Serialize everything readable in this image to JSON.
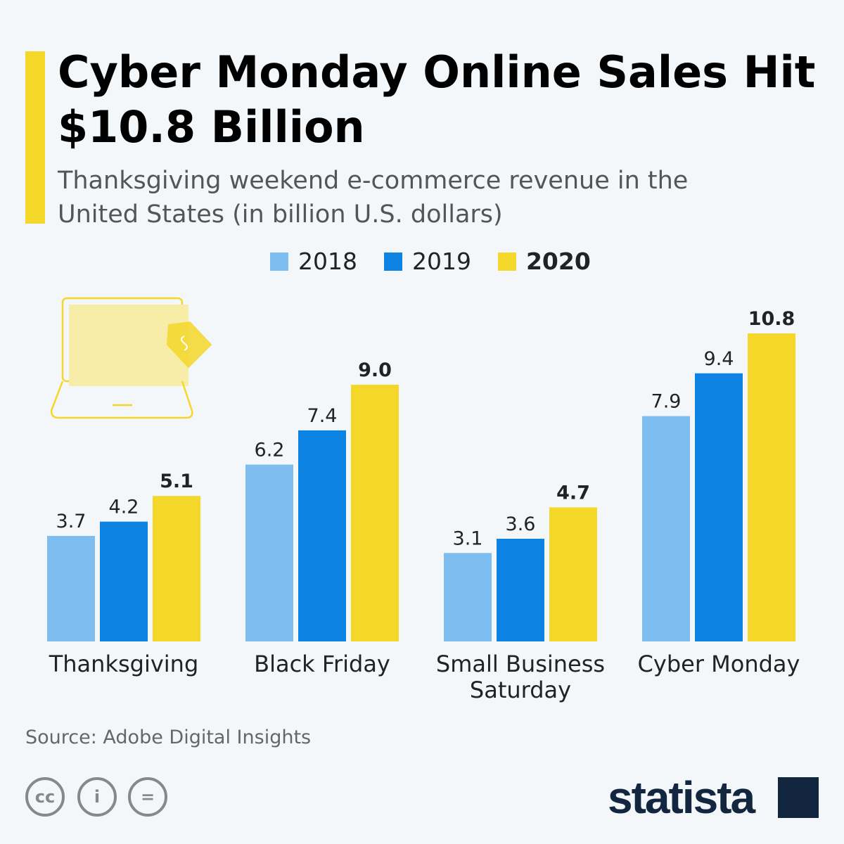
{
  "title": "Cyber Monday Online Sales Hit $10.8 Billion",
  "subtitle": "Thanksgiving weekend e-commerce revenue in the United States (in billion U.S. dollars)",
  "source": "Source: Adobe Digital Insights",
  "logo": "statista",
  "colors": {
    "2018": "#7dbdf0",
    "2019": "#0d84e3",
    "2020": "#f5d72a",
    "accent": "#f5d72a"
  },
  "chart_data": {
    "type": "bar",
    "categories": [
      "Thanksgiving",
      "Black Friday",
      "Small Business Saturday",
      "Cyber Monday"
    ],
    "series": [
      {
        "name": "2018",
        "values": [
          3.7,
          6.2,
          3.1,
          7.9
        ]
      },
      {
        "name": "2019",
        "values": [
          4.2,
          7.4,
          3.6,
          9.4
        ]
      },
      {
        "name": "2020",
        "values": [
          5.1,
          9.0,
          4.7,
          10.8
        ]
      }
    ],
    "value_labels": [
      [
        "3.7",
        "6.2",
        "3.1",
        "7.9"
      ],
      [
        "4.2",
        "7.4",
        "3.6",
        "9.4"
      ],
      [
        "5.1",
        "9.0",
        "4.7",
        "10.8"
      ]
    ],
    "legend": [
      "2018",
      "2019",
      "2020"
    ],
    "legend_position": "top",
    "grid": false,
    "ylim": [
      0,
      10.8
    ]
  }
}
